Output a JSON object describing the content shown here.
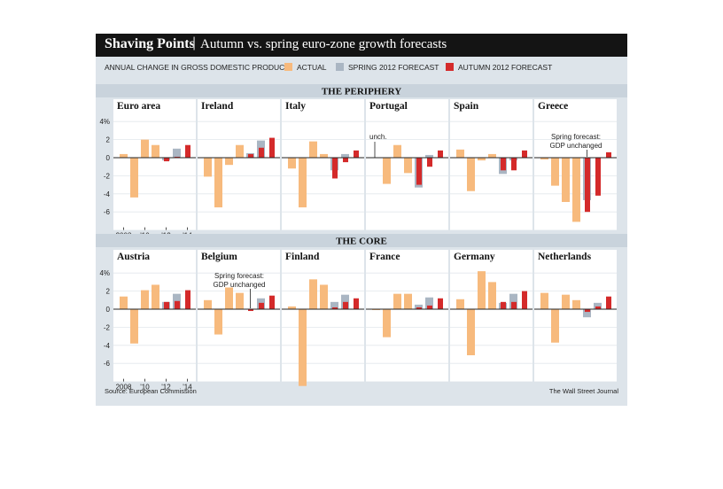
{
  "header": {
    "separator": "|"
  },
  "footer": {
    "source": "Source: European Commission",
    "credit": "The Wall Street Journal"
  },
  "colors": {
    "actual": "#f7ba7d",
    "spring": "#aab6c3",
    "autumn": "#d42a2a",
    "background": "#dde4ea",
    "titlebar": "#141414"
  },
  "chart_data": {
    "type": "bar",
    "title": "Shaving Points",
    "subtitle": "Autumn vs. spring euro-zone growth forecasts",
    "ylabel": "ANNUAL CHANGE IN GROSS DOMESTIC PRODUCT",
    "legend": [
      "ACTUAL",
      "SPRING 2012 FORECAST",
      "AUTUMN 2012 FORECAST"
    ],
    "years": [
      2008,
      2009,
      2010,
      2011,
      2012,
      2013,
      2014
    ],
    "actual_years": [
      2008,
      2009,
      2010,
      2011
    ],
    "forecast_years": [
      2012,
      2013,
      2014
    ],
    "x_tick_labels": [
      "2008",
      "'10",
      "'12",
      "'14"
    ],
    "y_ticks": [
      "4%",
      "2",
      "0",
      "-2",
      "-4",
      "-6"
    ],
    "ylim": [
      -8,
      4
    ],
    "groups": [
      {
        "name": "THE PERIPHERY",
        "panels": [
          {
            "country": "Euro area",
            "actual": [
              0.4,
              -4.4,
              2.0,
              1.4
            ],
            "spring": [
              -0.3,
              1.0,
              null
            ],
            "autumn": [
              -0.4,
              0.1,
              1.4
            ]
          },
          {
            "country": "Ireland",
            "actual": [
              -2.1,
              -5.5,
              -0.8,
              1.4
            ],
            "spring": [
              0.5,
              1.9,
              null
            ],
            "autumn": [
              0.4,
              1.1,
              2.2
            ]
          },
          {
            "country": "Italy",
            "actual": [
              -1.2,
              -5.5,
              1.8,
              0.4
            ],
            "spring": [
              -1.4,
              0.4,
              null
            ],
            "autumn": [
              -2.3,
              -0.5,
              0.8
            ]
          },
          {
            "country": "Portugal",
            "actual": [
              0.0,
              -2.9,
              1.4,
              -1.7
            ],
            "spring": [
              -3.3,
              0.3,
              null
            ],
            "autumn": [
              -3.0,
              -1.0,
              0.8
            ],
            "annotation": "unch."
          },
          {
            "country": "Spain",
            "actual": [
              0.9,
              -3.7,
              -0.3,
              0.4
            ],
            "spring": [
              -1.8,
              -0.3,
              null
            ],
            "autumn": [
              -1.4,
              -1.4,
              0.8
            ]
          },
          {
            "country": "Greece",
            "actual": [
              -0.2,
              -3.1,
              -4.9,
              -7.1
            ],
            "spring": [
              -4.7,
              0.0,
              null
            ],
            "autumn": [
              -6.0,
              -4.2,
              0.6
            ],
            "annotation": "Spring forecast: GDP unchanged"
          }
        ]
      },
      {
        "name": "THE CORE",
        "panels": [
          {
            "country": "Austria",
            "actual": [
              1.4,
              -3.8,
              2.1,
              2.7
            ],
            "spring": [
              0.8,
              1.7,
              null
            ],
            "autumn": [
              0.8,
              0.9,
              2.1
            ]
          },
          {
            "country": "Belgium",
            "actual": [
              1.0,
              -2.8,
              2.4,
              1.8
            ],
            "spring": [
              0.0,
              1.2,
              null
            ],
            "autumn": [
              -0.2,
              0.7,
              1.5
            ],
            "annotation": "Spring forecast: GDP unchanged"
          },
          {
            "country": "Finland",
            "actual": [
              0.3,
              -8.5,
              3.3,
              2.7
            ],
            "spring": [
              0.8,
              1.6,
              null
            ],
            "autumn": [
              0.2,
              0.8,
              1.2
            ]
          },
          {
            "country": "France",
            "actual": [
              -0.1,
              -3.1,
              1.7,
              1.7
            ],
            "spring": [
              0.5,
              1.3,
              null
            ],
            "autumn": [
              0.2,
              0.4,
              1.2
            ]
          },
          {
            "country": "Germany",
            "actual": [
              1.1,
              -5.1,
              4.2,
              3.0
            ],
            "spring": [
              0.7,
              1.7,
              null
            ],
            "autumn": [
              0.8,
              0.8,
              2.0
            ]
          },
          {
            "country": "Netherlands",
            "actual": [
              1.8,
              -3.7,
              1.6,
              1.0
            ],
            "spring": [
              -0.9,
              0.7,
              null
            ],
            "autumn": [
              -0.3,
              0.3,
              1.4
            ]
          }
        ]
      }
    ]
  }
}
